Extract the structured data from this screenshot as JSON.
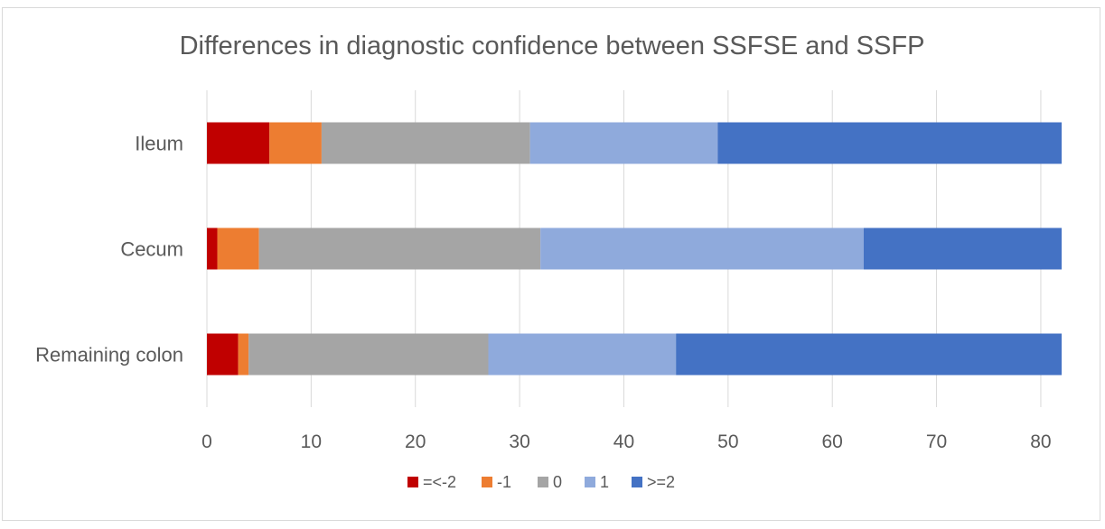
{
  "chart_data": {
    "type": "bar",
    "orientation": "horizontal",
    "stacked": true,
    "title": "Differences in diagnostic confidence between SSFSE and SSFP",
    "categories": [
      "Ileum",
      "Cecum",
      "Remaining colon"
    ],
    "series": [
      {
        "name": "=<-2",
        "color": "#c00000",
        "values": [
          6,
          1,
          3
        ]
      },
      {
        "name": "-1",
        "color": "#ed7d31",
        "values": [
          5,
          4,
          1
        ]
      },
      {
        "name": "0",
        "color": "#a5a5a5",
        "values": [
          20,
          27,
          23
        ]
      },
      {
        "name": "1",
        "color": "#8faadc",
        "values": [
          18,
          31,
          18
        ]
      },
      {
        "name": ">=2",
        "color": "#4472c4",
        "values": [
          33,
          19,
          37
        ]
      }
    ],
    "xlim": [
      0,
      82
    ],
    "xticks": [
      0,
      10,
      20,
      30,
      40,
      50,
      60,
      70,
      80
    ],
    "grid": true,
    "legend_position": "bottom",
    "xlabel": "",
    "ylabel": ""
  }
}
